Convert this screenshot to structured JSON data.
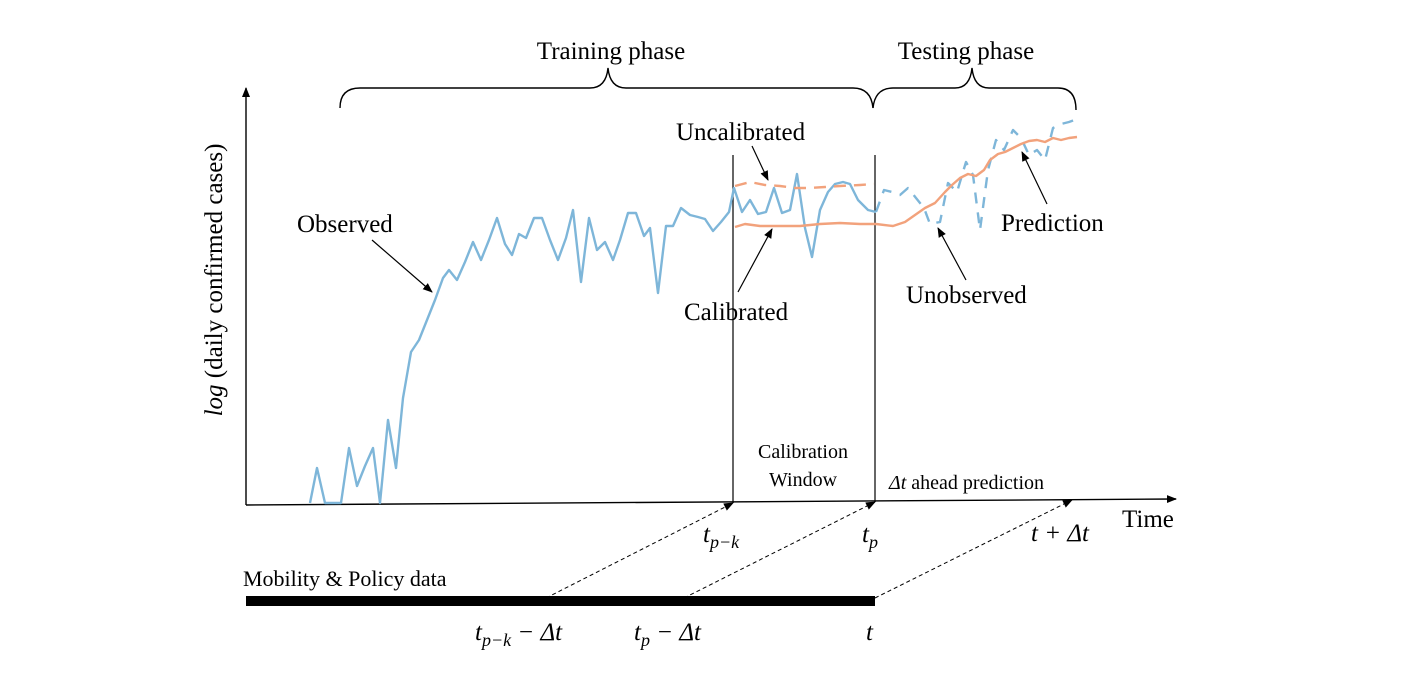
{
  "phases": {
    "training": "Training phase",
    "testing": "Testing phase"
  },
  "axes": {
    "y_label_log": "log",
    "y_label_rest": " (daily confirmed  cases)",
    "x_label": "Time"
  },
  "curves": {
    "observed": "Observed",
    "uncalibrated": "Uncalibrated",
    "calibrated": "Calibrated",
    "unobserved": "Unobserved",
    "prediction": "Prediction"
  },
  "windows": {
    "calibration_line1": "Calibration",
    "calibration_line2": "Window",
    "ahead_delta": "Δt",
    "ahead_rest": " ahead prediction"
  },
  "ticks": {
    "t_pk_base": "t",
    "t_pk_sub": "p−k",
    "t_p_base": "t",
    "t_p_sub": "p",
    "t_plus": "t + Δt"
  },
  "data_bar": {
    "label": "Mobility & Policy data",
    "t_pk_minus_base": "t",
    "t_pk_minus_sub": "p−k",
    "t_pk_minus_tail": " − Δt",
    "t_p_minus_base": "t",
    "t_p_minus_sub": "p",
    "t_p_minus_tail": " − Δt",
    "t": "t"
  },
  "colors": {
    "observed": "#7eb6d9",
    "model": "#f2a27c",
    "axis": "#000000"
  }
}
